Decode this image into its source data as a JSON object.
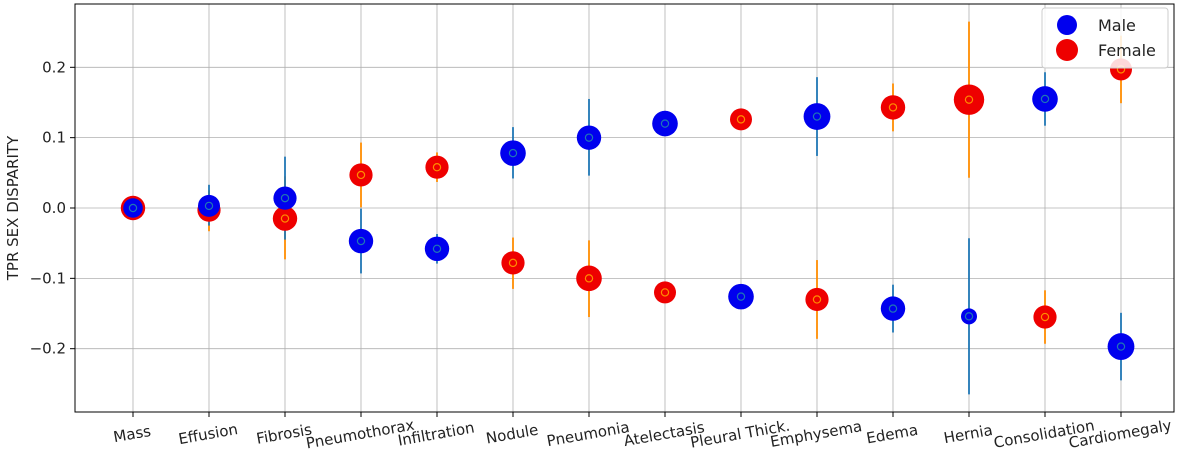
{
  "chart_data": {
    "type": "scatter",
    "title": "",
    "xlabel": "",
    "ylabel": "TPR SEX DISPARITY",
    "categories": [
      "Mass",
      "Effusion",
      "Fibrosis",
      "Pneumothorax",
      "Infiltration",
      "Nodule",
      "Pneumonia",
      "Atelectasis",
      "Pleural Thick.",
      "Emphysema",
      "Edema",
      "Hernia",
      "Consolidation",
      "Cardiomegaly"
    ],
    "ylim": [
      -0.29,
      0.29
    ],
    "yticks": [
      -0.2,
      -0.1,
      0.0,
      0.1,
      0.2
    ],
    "ytick_labels": [
      "−0.2",
      "−0.1",
      "0.0",
      "0.1",
      "0.2"
    ],
    "x_tick_rotation_deg": 10,
    "grid": true,
    "legend_position": "top-right",
    "series": [
      {
        "name": "Male",
        "color": "#0000ee",
        "errorbar_color": "#1f77b4",
        "values": [
          0.0,
          0.003,
          0.014,
          -0.047,
          -0.058,
          0.078,
          0.1,
          0.12,
          -0.126,
          0.13,
          -0.143,
          -0.154,
          0.155,
          -0.197
        ],
        "ci_low": [
          -0.006,
          -0.025,
          -0.045,
          -0.093,
          -0.079,
          0.042,
          0.046,
          0.108,
          -0.134,
          0.074,
          -0.177,
          -0.265,
          0.117,
          -0.245
        ],
        "ci_high": [
          0.006,
          0.033,
          0.073,
          -0.001,
          -0.037,
          0.115,
          0.155,
          0.131,
          -0.118,
          0.186,
          -0.109,
          -0.043,
          0.193,
          -0.149
        ],
        "marker_size": [
          0.4,
          0.5,
          0.55,
          0.6,
          0.6,
          0.65,
          0.6,
          0.65,
          0.65,
          0.7,
          0.6,
          0.25,
          0.65,
          0.7
        ]
      },
      {
        "name": "Female",
        "color": "#ee0000",
        "errorbar_color": "#ff8c00",
        "values": [
          0.0,
          -0.003,
          -0.015,
          0.047,
          0.058,
          -0.078,
          -0.1,
          -0.12,
          0.126,
          -0.13,
          0.143,
          0.154,
          -0.155,
          0.197
        ],
        "ci_low": [
          -0.006,
          -0.033,
          -0.073,
          0.001,
          0.037,
          -0.115,
          -0.155,
          -0.131,
          0.118,
          -0.186,
          0.109,
          0.043,
          -0.193,
          0.149
        ],
        "ci_high": [
          0.006,
          0.025,
          0.045,
          0.093,
          0.079,
          -0.042,
          -0.046,
          -0.108,
          0.134,
          -0.074,
          0.177,
          0.265,
          -0.117,
          0.245
        ],
        "marker_size": [
          0.6,
          0.55,
          0.6,
          0.55,
          0.55,
          0.55,
          0.65,
          0.5,
          0.5,
          0.55,
          0.6,
          0.85,
          0.55,
          0.5
        ]
      }
    ]
  }
}
